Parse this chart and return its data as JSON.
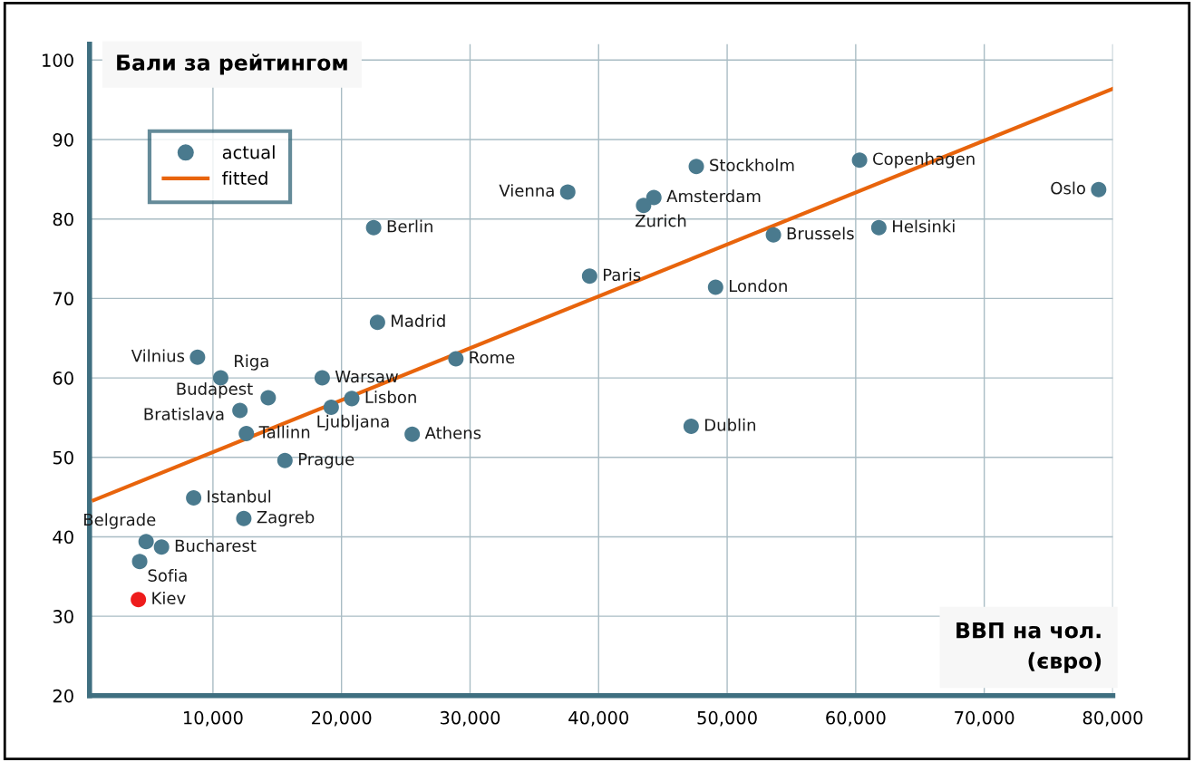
{
  "chart_data": {
    "type": "scatter",
    "ylabel": "Бали за рейтингом",
    "xlabel": "ВВП на чол.\n(євро)",
    "xlim": [
      400,
      80000
    ],
    "ylim": [
      20,
      102
    ],
    "xticks": [
      {
        "value": 10000,
        "label": "10,000"
      },
      {
        "value": 20000,
        "label": "20,000"
      },
      {
        "value": 30000,
        "label": "30,000"
      },
      {
        "value": 40000,
        "label": "40,000"
      },
      {
        "value": 50000,
        "label": "50,000"
      },
      {
        "value": 60000,
        "label": "60,000"
      },
      {
        "value": 70000,
        "label": "70,000"
      },
      {
        "value": 80000,
        "label": "80,000"
      }
    ],
    "yticks": [
      20,
      30,
      40,
      50,
      60,
      70,
      80,
      90,
      100
    ],
    "grid": true,
    "legend": "top left",
    "series": [
      {
        "name": "actual",
        "marker": "circle",
        "color": "#4a7a8e",
        "x": [
          37600,
          22500,
          22800,
          8800,
          10600,
          18500,
          28900,
          39300,
          47600,
          60300,
          78900,
          44300,
          43500,
          53600,
          61800,
          49100,
          14300,
          12100,
          12600,
          20800,
          19200,
          25500,
          15600,
          8500,
          12400,
          4800,
          6000,
          4300,
          4200,
          47200
        ],
        "values": [
          83.4,
          78.9,
          67.0,
          62.6,
          60.0,
          60.0,
          62.4,
          72.8,
          86.6,
          87.4,
          83.7,
          82.7,
          81.7,
          78.0,
          78.9,
          71.4,
          57.5,
          55.9,
          53.0,
          57.4,
          56.3,
          52.9,
          49.6,
          44.9,
          42.3,
          39.4,
          38.7,
          36.9,
          32.1,
          53.9
        ],
        "colors": [
          "#4a7a8e",
          "#4a7a8e",
          "#4a7a8e",
          "#4a7a8e",
          "#4a7a8e",
          "#4a7a8e",
          "#4a7a8e",
          "#4a7a8e",
          "#4a7a8e",
          "#4a7a8e",
          "#4a7a8e",
          "#4a7a8e",
          "#4a7a8e",
          "#4a7a8e",
          "#4a7a8e",
          "#4a7a8e",
          "#4a7a8e",
          "#4a7a8e",
          "#4a7a8e",
          "#4a7a8e",
          "#4a7a8e",
          "#4a7a8e",
          "#4a7a8e",
          "#4a7a8e",
          "#4a7a8e",
          "#4a7a8e",
          "#4a7a8e",
          "#4a7a8e",
          "#ee1c1c",
          "#4a7a8e"
        ]
      },
      {
        "name": "fitted",
        "type": "line",
        "color": "#e8640c",
        "x": [
          720,
          80000
        ],
        "values": [
          44.6,
          96.4
        ]
      }
    ],
    "annotations": [
      {
        "text": "Vienna",
        "x": 37600,
        "y": 83.4
      },
      {
        "text": "Berlin",
        "x": 22500,
        "y": 78.9
      },
      {
        "text": "Madrid",
        "x": 22800,
        "y": 67.0
      },
      {
        "text": "Vilnius",
        "x": 8800,
        "y": 62.6
      },
      {
        "text": "Riga",
        "x": 10600,
        "y": 60.0
      },
      {
        "text": "Warsaw",
        "x": 18500,
        "y": 60.0
      },
      {
        "text": "Rome",
        "x": 28900,
        "y": 62.4
      },
      {
        "text": "Paris",
        "x": 39300,
        "y": 72.8
      },
      {
        "text": "Stockholm",
        "x": 47600,
        "y": 86.6
      },
      {
        "text": "Copenhagen",
        "x": 60300,
        "y": 87.4
      },
      {
        "text": "Oslo",
        "x": 78900,
        "y": 83.7
      },
      {
        "text": "Amsterdam",
        "x": 44300,
        "y": 82.7
      },
      {
        "text": "Zurich",
        "x": 43500,
        "y": 81.7
      },
      {
        "text": "Brussels",
        "x": 53600,
        "y": 78.0
      },
      {
        "text": "Helsinki",
        "x": 61800,
        "y": 78.9
      },
      {
        "text": "London",
        "x": 49100,
        "y": 71.4
      },
      {
        "text": "Budapest",
        "x": 14300,
        "y": 57.5
      },
      {
        "text": "Bratislava",
        "x": 12100,
        "y": 55.9
      },
      {
        "text": "Tallinn",
        "x": 12600,
        "y": 53.0
      },
      {
        "text": "Lisbon",
        "x": 20800,
        "y": 57.4
      },
      {
        "text": "Ljubljana",
        "x": 19200,
        "y": 56.3
      },
      {
        "text": "Athens",
        "x": 25500,
        "y": 52.9
      },
      {
        "text": "Prague",
        "x": 15600,
        "y": 49.6
      },
      {
        "text": "Istanbul",
        "x": 8500,
        "y": 44.9
      },
      {
        "text": "Zagreb",
        "x": 12400,
        "y": 42.3
      },
      {
        "text": "Belgrade",
        "x": 4800,
        "y": 39.4
      },
      {
        "text": "Bucharest",
        "x": 6000,
        "y": 38.7
      },
      {
        "text": "Sofia",
        "x": 4300,
        "y": 36.9
      },
      {
        "text": "Kiev",
        "x": 4200,
        "y": 32.1
      },
      {
        "text": "Dublin",
        "x": 47200,
        "y": 53.9
      }
    ]
  }
}
